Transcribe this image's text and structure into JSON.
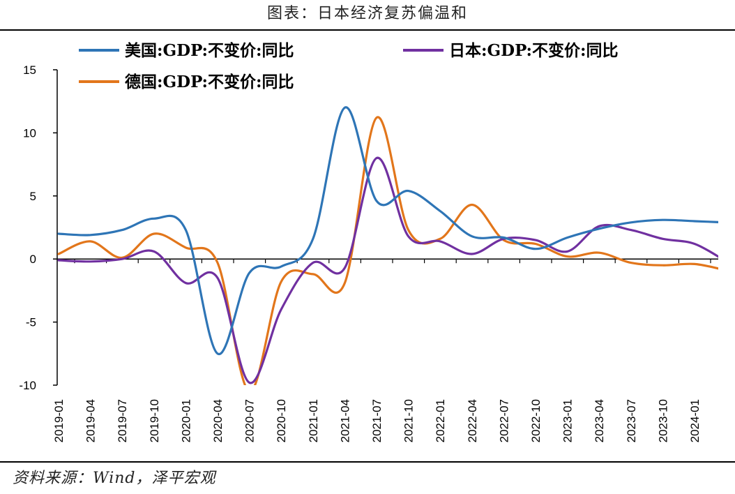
{
  "title": "图表：日本经济复苏偏温和",
  "source": "资料来源：Wind，泽平宏观",
  "chart_data": {
    "type": "line",
    "ylim": [
      -10,
      15
    ],
    "yticks": [
      15,
      10,
      5,
      0,
      -5,
      -10
    ],
    "x": [
      "2019-01",
      "2019-04",
      "2019-07",
      "2019-10",
      "2020-01",
      "2020-04",
      "2020-07",
      "2020-10",
      "2021-01",
      "2021-04",
      "2021-07",
      "2021-10",
      "2022-01",
      "2022-04",
      "2022-07",
      "2022-10",
      "2023-01",
      "2023-04",
      "2023-07",
      "2023-10",
      "2024-01",
      "2024-04"
    ],
    "xticklabels": [
      "2019-01",
      "2019-04",
      "2019-07",
      "2019-10",
      "2020-01",
      "2020-04",
      "2020-07",
      "2020-10",
      "2021-01",
      "2021-04",
      "2021-07",
      "2021-10",
      "2022-01",
      "2022-04",
      "2022-07",
      "2022-10",
      "2023-01",
      "2023-04",
      "2023-07",
      "2023-10",
      "2024-01"
    ],
    "grid": false,
    "legend": "top",
    "series": [
      {
        "name": "美国:GDP:不变价:同比",
        "color": "#2e75b6",
        "values": [
          2.0,
          1.9,
          2.3,
          3.2,
          2.3,
          -7.5,
          -1.1,
          -0.6,
          1.6,
          12.0,
          4.6,
          5.4,
          3.8,
          1.8,
          1.7,
          0.8,
          1.7,
          2.4,
          2.9,
          3.1,
          3.0,
          2.9
        ]
      },
      {
        "name": "日本:GDP:不变价:同比",
        "color": "#7030a0",
        "values": [
          -0.1,
          -0.2,
          0.0,
          0.6,
          -1.9,
          -1.5,
          -9.8,
          -4.0,
          -0.3,
          -0.7,
          8.0,
          1.8,
          1.4,
          0.4,
          1.6,
          1.5,
          0.6,
          2.6,
          2.3,
          1.6,
          1.2,
          -0.2
        ]
      },
      {
        "name": "德国:GDP:不变价:同比",
        "color": "#e2761b",
        "values": [
          0.4,
          1.4,
          0.1,
          2.0,
          0.9,
          -0.3,
          -10.5,
          -1.8,
          -1.2,
          -1.9,
          11.2,
          2.3,
          1.6,
          4.3,
          1.5,
          1.2,
          0.2,
          0.5,
          -0.3,
          -0.5,
          -0.4,
          -0.9
        ]
      }
    ]
  }
}
